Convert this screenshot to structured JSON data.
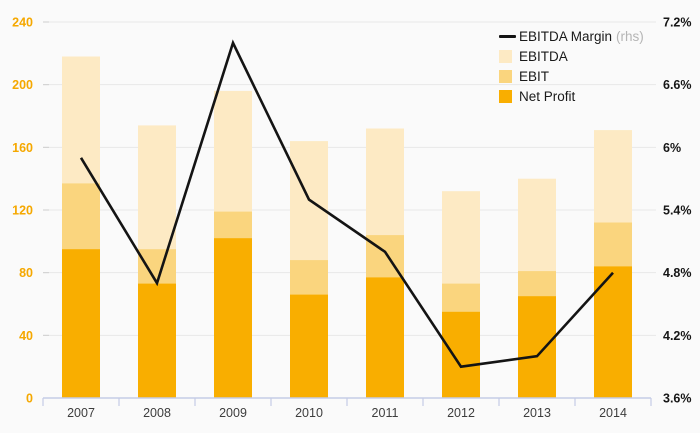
{
  "chart_data": {
    "type": "bar",
    "subtype": "overlaid-bars-with-line",
    "categories": [
      "2007",
      "2008",
      "2009",
      "2010",
      "2011",
      "2012",
      "2013",
      "2014"
    ],
    "series": [
      {
        "name": "EBITDA Margin (rhs)",
        "type": "line",
        "axis": "right",
        "color": "#141414",
        "values": [
          5.9,
          4.7,
          7.0,
          5.5,
          5.0,
          3.9,
          4.0,
          4.8
        ]
      },
      {
        "name": "EBITDA",
        "type": "bar",
        "color": "#fdeac4",
        "values": [
          218,
          174,
          196,
          164,
          172,
          132,
          140,
          171
        ]
      },
      {
        "name": "EBIT",
        "type": "bar",
        "color": "#fad57e",
        "values": [
          137,
          95,
          119,
          88,
          104,
          73,
          81,
          112
        ]
      },
      {
        "name": "Net Profit",
        "type": "bar",
        "color": "#f9ae00",
        "values": [
          95,
          73,
          102,
          66,
          77,
          55,
          65,
          84
        ]
      }
    ],
    "left_axis": {
      "min": 0,
      "max": 240,
      "values": [
        0,
        40,
        80,
        120,
        160,
        200,
        240
      ],
      "ticks": [
        "0",
        "40",
        "80",
        "120",
        "160",
        "200",
        "240"
      ],
      "label_color": "#f5a800"
    },
    "right_axis": {
      "min": 3.6,
      "max": 7.2,
      "values": [
        3.6,
        4.2,
        4.8,
        5.4,
        6,
        6.6,
        7.2
      ],
      "ticks": [
        "3.6%",
        "4.2%",
        "4.8%",
        "5.4%",
        "6%",
        "6.6%",
        "7.2%"
      ],
      "label_color": "#161616"
    },
    "grid": true,
    "legend_position": "top-right",
    "title": "",
    "xlabel": "",
    "ylabel": ""
  },
  "legend": {
    "items": [
      {
        "label": "EBITDA Margin",
        "suffix": "(rhs)",
        "marker": "line",
        "color": "#141414"
      },
      {
        "label": "EBITDA",
        "marker": "square",
        "color": "#fdeac4"
      },
      {
        "label": "EBIT",
        "marker": "square",
        "color": "#fad57e"
      },
      {
        "label": "Net Profit",
        "marker": "square",
        "color": "#f9ae00"
      }
    ]
  },
  "colors": {
    "background": "#fafafa",
    "gridline": "#e8e8e8",
    "x_axis": "#c5cce6",
    "line_series": "#141414"
  }
}
